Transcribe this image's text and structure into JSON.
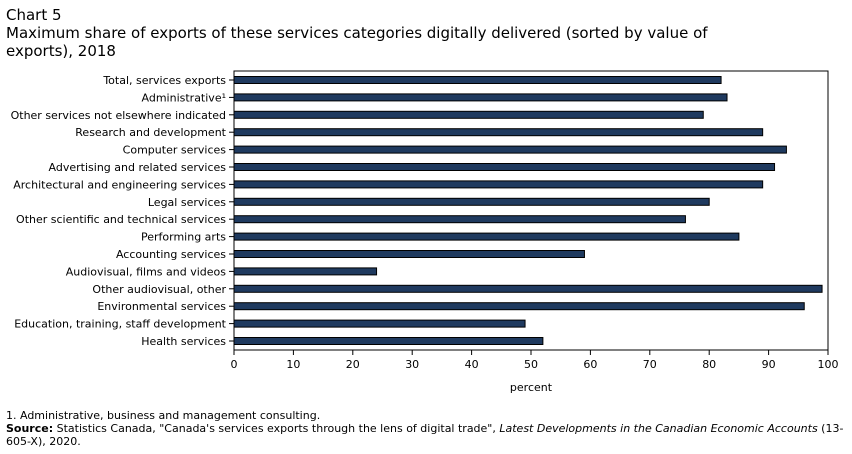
{
  "header": {
    "chart_number": "Chart 5",
    "title": "Maximum share of exports of these services categories digitally  delivered (sorted by value of exports), 2018"
  },
  "chart_data": {
    "type": "bar",
    "orientation": "horizontal",
    "categories": [
      "Total, services exports",
      "Administrative¹",
      "Other services not elsewhere indicated",
      "Research and development",
      "Computer services",
      "Advertising and related services",
      "Architectural and engineering services",
      "Legal services",
      "Other scientific and technical services",
      "Performing arts",
      "Accounting services",
      "Audiovisual, films and videos",
      "Other audiovisual, other",
      "Environmental services",
      "Education, training, staff development",
      "Health services"
    ],
    "values": [
      82,
      83,
      79,
      89,
      93,
      91,
      89,
      80,
      76,
      85,
      59,
      24,
      99,
      96,
      49,
      52
    ],
    "xlabel": "percent",
    "ylabel": "",
    "xlim": [
      0,
      100
    ],
    "xticks": [
      0,
      10,
      20,
      30,
      40,
      50,
      60,
      70,
      80,
      90,
      100
    ],
    "grid": false,
    "legend": "none",
    "bar_color": "#1f3a5f",
    "bar_edge_color": "#000000"
  },
  "footer": {
    "note": "1. Administrative, business and management consulting.",
    "source_label": "Source:",
    "source_text_before": " Statistics Canada, \"Canada's services exports through the lens of digital trade\", ",
    "source_publication": "Latest Developments in the Canadian Economic Accounts",
    "source_text_after": " (13-605-X), 2020."
  }
}
